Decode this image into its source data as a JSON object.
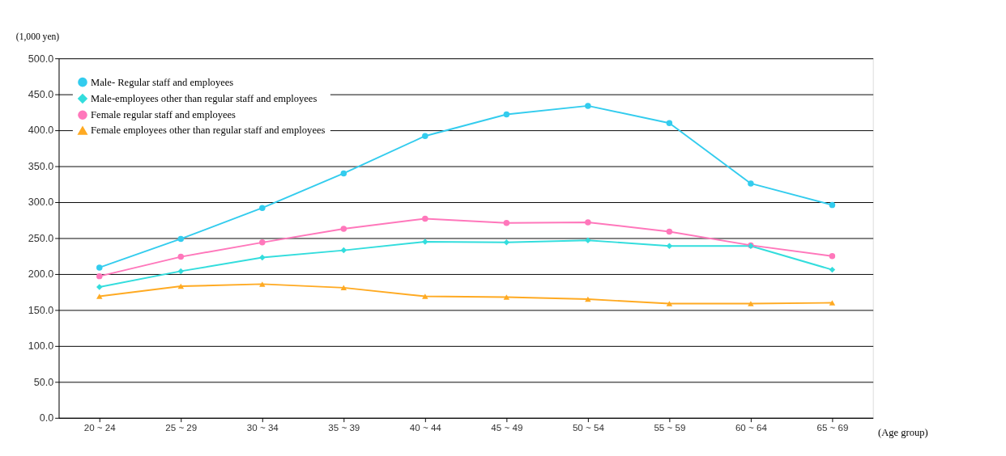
{
  "chart_data": {
    "type": "line",
    "ylabel": "(1,000 yen)",
    "xlabel": "(Age group)",
    "categories": [
      "20 ~ 24",
      "25 ~ 29",
      "30 ~ 34",
      "35 ~ 39",
      "40 ~ 44",
      "45 ~ 49",
      "50 ~ 54",
      "55 ~ 59",
      "60 ~ 64",
      "65 ~ 69"
    ],
    "series": [
      {
        "name": "Male- Regular staff and employees",
        "color": "#33ccee",
        "marker": "circle",
        "values": [
          209,
          249,
          292,
          340,
          392,
          422,
          434,
          410,
          326,
          296
        ]
      },
      {
        "name": "Male-employees other than regular staff and employees",
        "color": "#33dddd",
        "marker": "diamond",
        "values": [
          182,
          204,
          223,
          233,
          245,
          244,
          247,
          239,
          239,
          206
        ]
      },
      {
        "name": "Female regular staff and employees",
        "color": "#ff77bb",
        "marker": "circle",
        "values": [
          197,
          224,
          244,
          263,
          277,
          271,
          272,
          259,
          240,
          225
        ]
      },
      {
        "name": "Female employees other than regular staff and employees",
        "color": "#ffaa22",
        "marker": "triangle",
        "values": [
          169,
          183,
          186,
          181,
          169,
          168,
          165,
          159,
          159,
          160
        ]
      }
    ],
    "ylim": [
      0,
      500
    ],
    "yticks": [
      {
        "value": 0,
        "label": "0.0"
      },
      {
        "value": 50,
        "label": "50.0"
      },
      {
        "value": 100,
        "label": "100.0"
      },
      {
        "value": 150,
        "label": "150.0"
      },
      {
        "value": 200,
        "label": "200.0"
      },
      {
        "value": 250,
        "label": "250.0"
      },
      {
        "value": 300,
        "label": "300.0"
      },
      {
        "value": 350,
        "label": "350.0"
      },
      {
        "value": 400,
        "label": "400.0"
      },
      {
        "value": 450,
        "label": "450.0"
      },
      {
        "value": 500,
        "label": "500.0"
      }
    ],
    "grid": "y",
    "legend": "top left",
    "line_style": "solid"
  }
}
